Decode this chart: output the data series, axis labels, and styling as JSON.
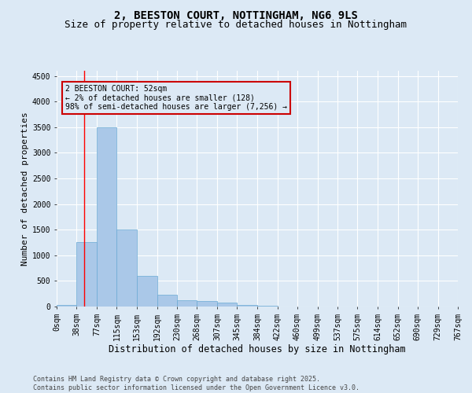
{
  "title_line1": "2, BEESTON COURT, NOTTINGHAM, NG6 9LS",
  "title_line2": "Size of property relative to detached houses in Nottingham",
  "xlabel": "Distribution of detached houses by size in Nottingham",
  "ylabel": "Number of detached properties",
  "background_color": "#dce9f5",
  "bar_color": "#aac8e8",
  "bar_edge_color": "#6aaad4",
  "grid_color": "#ffffff",
  "annotation_box_color": "#cc0000",
  "annotation_text": "2 BEESTON COURT: 52sqm\n← 2% of detached houses are smaller (128)\n98% of semi-detached houses are larger (7,256) →",
  "property_line_x": 52,
  "bin_edges": [
    0,
    38,
    77,
    115,
    153,
    192,
    230,
    268,
    307,
    345,
    384,
    422,
    460,
    499,
    537,
    575,
    614,
    652,
    690,
    729,
    767
  ],
  "bar_heights": [
    30,
    1250,
    3500,
    1500,
    600,
    230,
    130,
    100,
    70,
    30,
    10,
    5,
    5,
    2,
    1,
    1,
    0,
    0,
    0,
    0
  ],
  "ylim": [
    0,
    4600
  ],
  "yticks": [
    0,
    500,
    1000,
    1500,
    2000,
    2500,
    3000,
    3500,
    4000,
    4500
  ],
  "footer_text": "Contains HM Land Registry data © Crown copyright and database right 2025.\nContains public sector information licensed under the Open Government Licence v3.0.",
  "title_fontsize": 10,
  "subtitle_fontsize": 9,
  "axis_label_fontsize": 8,
  "tick_fontsize": 7,
  "annotation_fontsize": 7,
  "footer_fontsize": 6
}
